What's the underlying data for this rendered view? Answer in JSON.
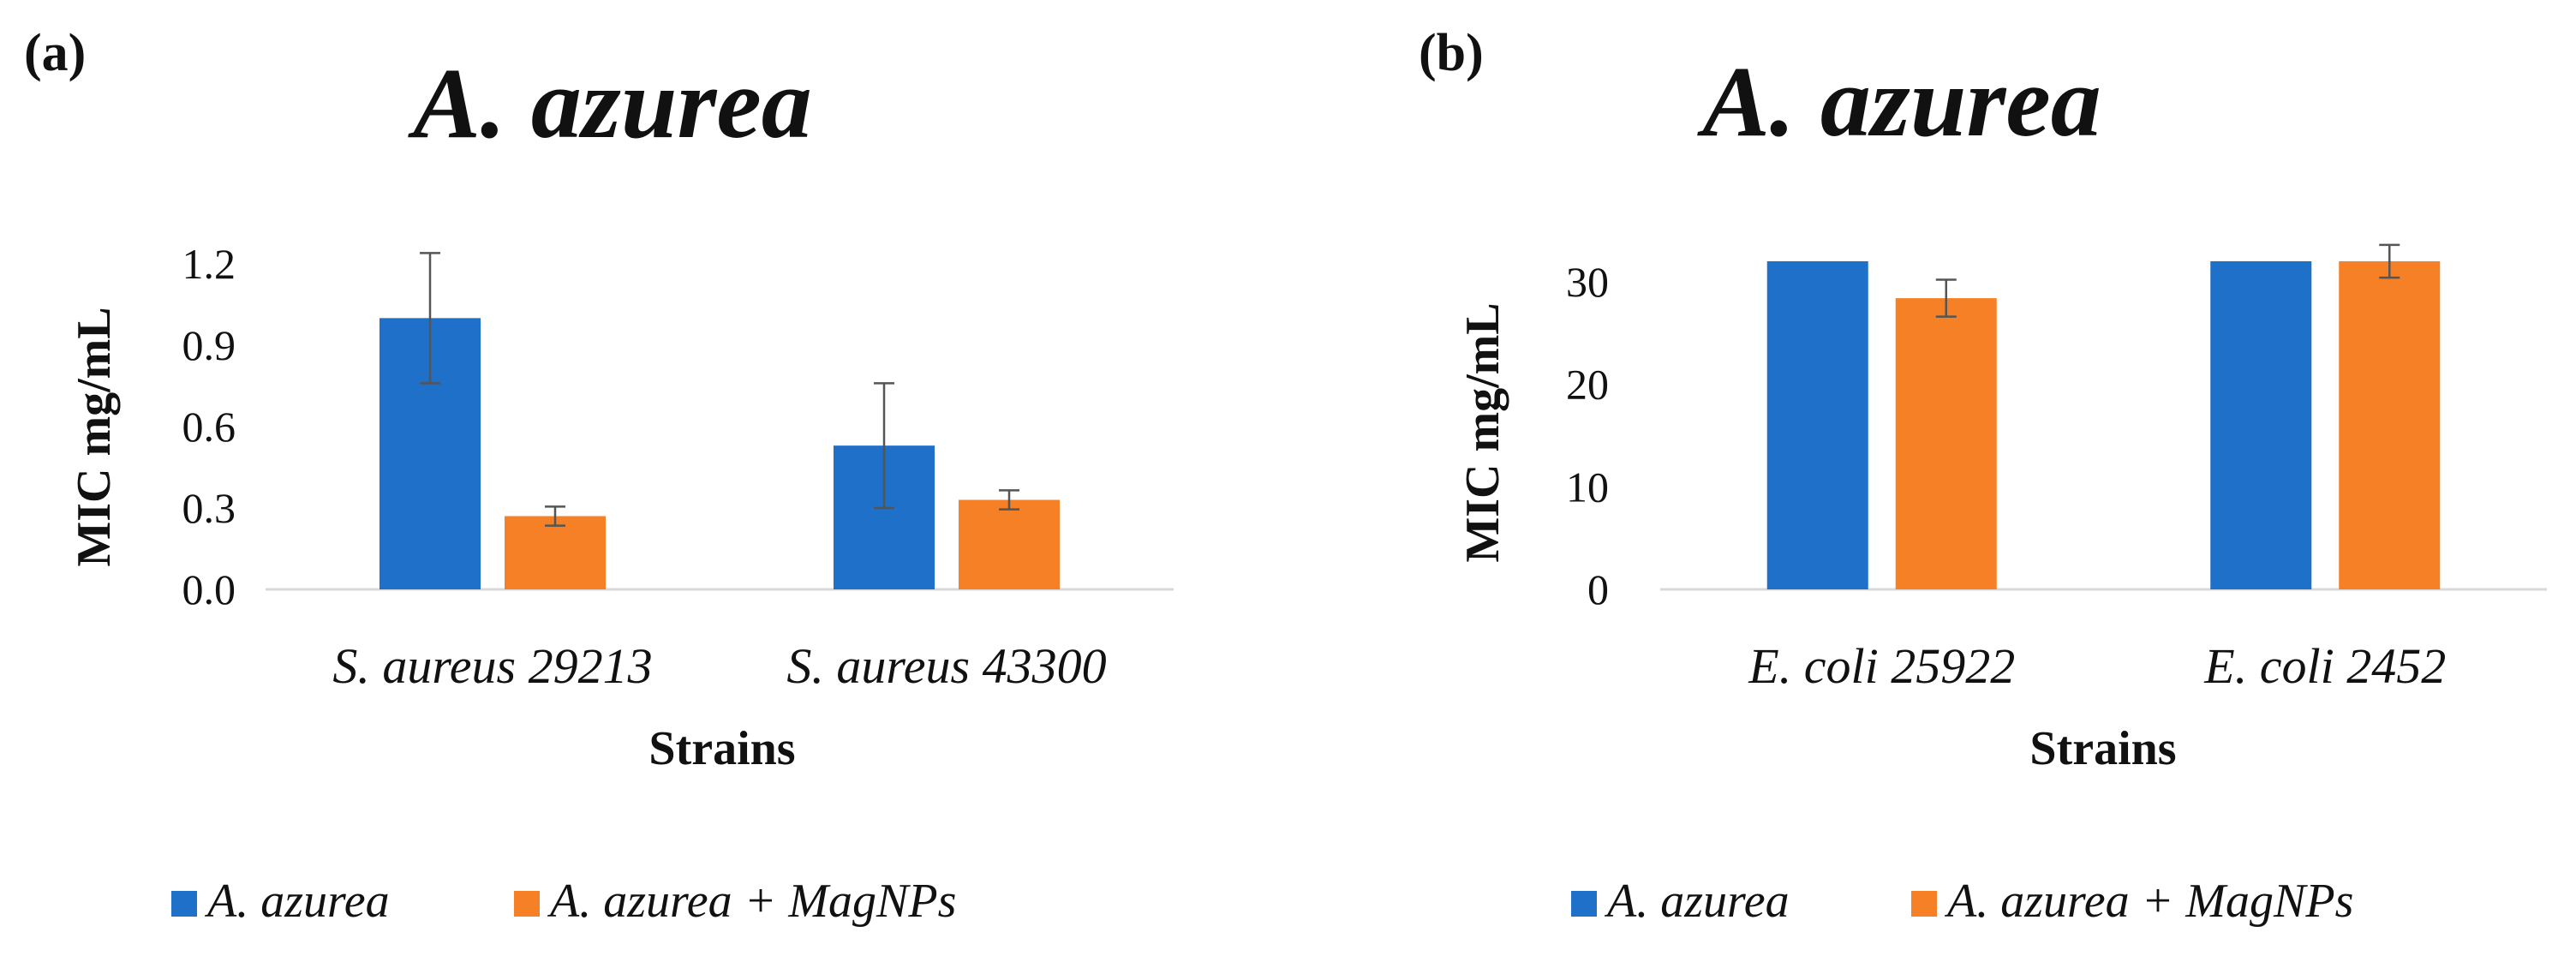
{
  "chart_data": [
    {
      "type": "bar",
      "panel_label": "(a)",
      "title": "A. azurea",
      "xlabel": "Strains",
      "ylabel": "MIC mg/mL",
      "categories": [
        "S. aureus 29213",
        "S. aureus 43300"
      ],
      "ylim": [
        0,
        1.2
      ],
      "yticks": [
        "0.0",
        "0.3",
        "0.6",
        "0.9",
        "1.2"
      ],
      "series": [
        {
          "name": "A. azurea",
          "color": "#1f70c9",
          "values": [
            1.0,
            0.53
          ],
          "errors": [
            0.24,
            0.23
          ]
        },
        {
          "name": "A. azurea + MagNPs",
          "color": "#f58025",
          "values": [
            0.27,
            0.33
          ],
          "errors": [
            0.035,
            0.035
          ]
        }
      ],
      "legend": "bottom"
    },
    {
      "type": "bar",
      "panel_label": "(b)",
      "title": "A. azurea",
      "xlabel": "Strains",
      "ylabel": "MIC mg/mL",
      "categories": [
        "E. coli 25922",
        "E. coli 2452"
      ],
      "ylim": [
        0,
        32
      ],
      "yticks": [
        "0",
        "10",
        "20",
        "30"
      ],
      "series": [
        {
          "name": "A. azurea",
          "color": "#1f70c9",
          "values": [
            32,
            32
          ],
          "errors": [
            0,
            0
          ]
        },
        {
          "name": "A. azurea + MagNPs",
          "color": "#f58025",
          "values": [
            28.4,
            32
          ],
          "errors": [
            1.8,
            1.6
          ]
        }
      ],
      "legend": "bottom"
    }
  ]
}
